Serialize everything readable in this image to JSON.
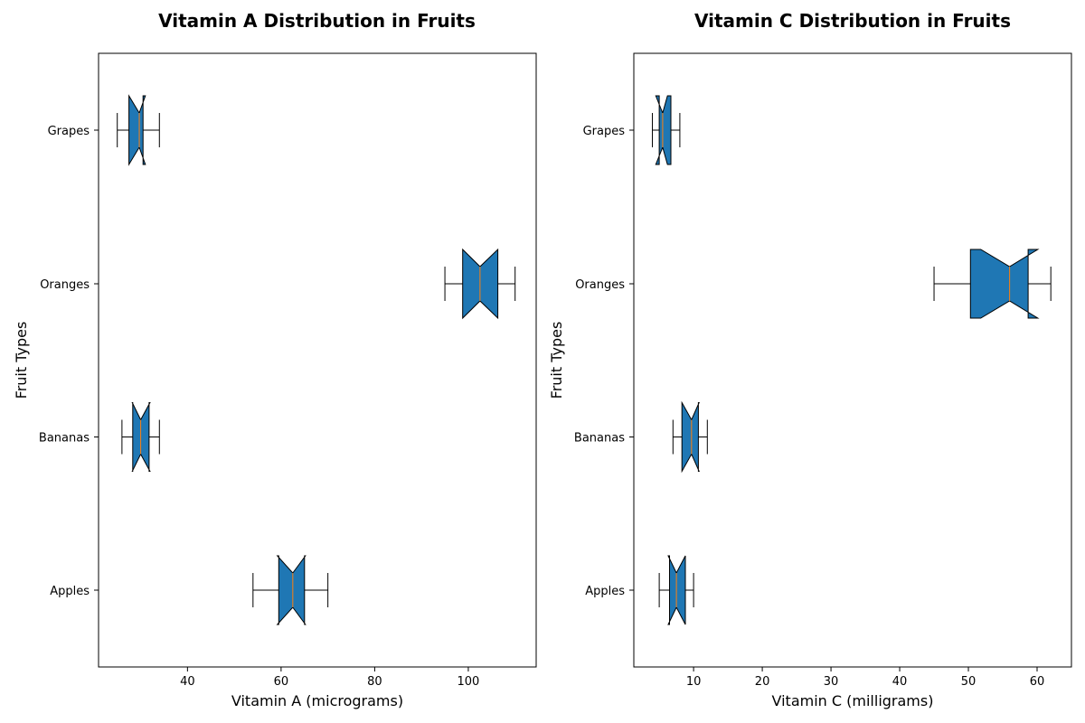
{
  "chart_data": [
    {
      "type": "boxplot",
      "orientation": "horizontal",
      "notched": true,
      "title": "Vitamin A Distribution in Fruits",
      "xlabel": "Vitamin A (micrograms)",
      "ylabel": "Fruit Types",
      "xlim": [
        21,
        114.5
      ],
      "xticks": [
        40,
        60,
        80,
        100
      ],
      "categories": [
        "Apples",
        "Bananas",
        "Oranges",
        "Grapes"
      ],
      "boxes": [
        {
          "name": "Apples",
          "whislo": 54,
          "q1": 59.5,
          "med": 62.5,
          "q3": 65,
          "whishi": 70,
          "cilo": 59.2,
          "cihi": 65.2
        },
        {
          "name": "Bananas",
          "whislo": 26,
          "q1": 28.3,
          "med": 30,
          "q3": 31.8,
          "whishi": 34,
          "cilo": 28.2,
          "cihi": 32
        },
        {
          "name": "Oranges",
          "whislo": 95,
          "q1": 98.8,
          "med": 102.5,
          "q3": 106.3,
          "whishi": 110,
          "cilo": 98.8,
          "cihi": 106.3
        },
        {
          "name": "Grapes",
          "whislo": 25,
          "q1": 27.5,
          "med": 29.7,
          "q3": 30.5,
          "whishi": 34,
          "cilo": 27.5,
          "cihi": 31
        }
      ],
      "colors": {
        "box_fill": "#1f77b4",
        "median": "#ff7f0e",
        "edge": "#000000"
      }
    },
    {
      "type": "boxplot",
      "orientation": "horizontal",
      "notched": true,
      "title": "Vitamin C Distribution in Fruits",
      "xlabel": "Vitamin C (milligrams)",
      "ylabel": "Fruit Types",
      "xlim": [
        1.3,
        65
      ],
      "xticks": [
        10,
        20,
        30,
        40,
        50,
        60
      ],
      "categories": [
        "Apples",
        "Bananas",
        "Oranges",
        "Grapes"
      ],
      "boxes": [
        {
          "name": "Apples",
          "whislo": 5,
          "q1": 6.5,
          "med": 7.5,
          "q3": 8.8,
          "whishi": 10,
          "cilo": 6.3,
          "cihi": 8.8
        },
        {
          "name": "Bananas",
          "whislo": 7,
          "q1": 8.3,
          "med": 9.7,
          "q3": 10.7,
          "whishi": 12,
          "cilo": 8.3,
          "cihi": 10.8
        },
        {
          "name": "Oranges",
          "whislo": 45,
          "q1": 50.3,
          "med": 56,
          "q3": 58.7,
          "whishi": 62,
          "cilo": 51.8,
          "cihi": 60.1
        },
        {
          "name": "Grapes",
          "whislo": 4,
          "q1": 5,
          "med": 5.5,
          "q3": 6.7,
          "whishi": 8,
          "cilo": 4.5,
          "cihi": 6.2
        }
      ],
      "colors": {
        "box_fill": "#1f77b4",
        "median": "#ff7f0e",
        "edge": "#000000"
      }
    }
  ]
}
